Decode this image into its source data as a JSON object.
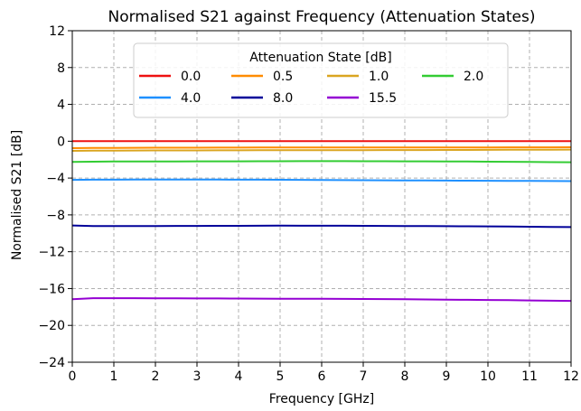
{
  "chart_data": {
    "type": "line",
    "title": "Normalised S21 against Frequency (Attenuation States)",
    "xlabel": "Frequency [GHz]",
    "ylabel": "Normalised S21 [dB]",
    "xlim": [
      0,
      12
    ],
    "ylim": [
      -24,
      12
    ],
    "xticks": [
      0,
      1,
      2,
      3,
      4,
      5,
      6,
      7,
      8,
      9,
      10,
      11,
      12
    ],
    "yticks": [
      12,
      8,
      4,
      0,
      -4,
      -8,
      -12,
      -16,
      -20,
      -24
    ],
    "grid": true,
    "legend": {
      "title": "Attenuation State [dB]",
      "placement": "upper-center",
      "columns": 4
    },
    "x": [
      0,
      0.5,
      1,
      1.5,
      2,
      2.5,
      3,
      3.5,
      4,
      4.5,
      5,
      5.5,
      6,
      6.5,
      7,
      7.5,
      8,
      8.5,
      9,
      9.5,
      10,
      10.5,
      11,
      11.5,
      12
    ],
    "series": [
      {
        "name": "0.0",
        "color": "#ee1111",
        "values": [
          0,
          0,
          0,
          0,
          0,
          0,
          0,
          0,
          0,
          0,
          0,
          0,
          0,
          0,
          0,
          0,
          0,
          0,
          0,
          0,
          0,
          0,
          0,
          0,
          0
        ]
      },
      {
        "name": "0.5",
        "color": "#ff8c00",
        "values": [
          -0.75,
          -0.72,
          -0.72,
          -0.71,
          -0.7,
          -0.7,
          -0.7,
          -0.69,
          -0.69,
          -0.68,
          -0.68,
          -0.68,
          -0.68,
          -0.68,
          -0.68,
          -0.68,
          -0.68,
          -0.68,
          -0.67,
          -0.67,
          -0.67,
          -0.66,
          -0.66,
          -0.66,
          -0.65
        ]
      },
      {
        "name": "1.0",
        "color": "#daa520",
        "values": [
          -1.05,
          -1.03,
          -1.02,
          -1.01,
          -1.0,
          -1.0,
          -1.0,
          -0.99,
          -0.99,
          -0.98,
          -0.98,
          -0.98,
          -0.98,
          -0.97,
          -0.97,
          -0.96,
          -0.96,
          -0.96,
          -0.95,
          -0.95,
          -0.94,
          -0.93,
          -0.92,
          -0.92,
          -0.91
        ]
      },
      {
        "name": "2.0",
        "color": "#33cc33",
        "values": [
          -2.25,
          -2.22,
          -2.2,
          -2.2,
          -2.19,
          -2.19,
          -2.18,
          -2.18,
          -2.18,
          -2.17,
          -2.17,
          -2.16,
          -2.16,
          -2.16,
          -2.17,
          -2.17,
          -2.18,
          -2.18,
          -2.19,
          -2.2,
          -2.22,
          -2.23,
          -2.25,
          -2.27,
          -2.28
        ]
      },
      {
        "name": "4.0",
        "color": "#1e90ff",
        "values": [
          -4.2,
          -4.18,
          -4.18,
          -4.17,
          -4.17,
          -4.17,
          -4.17,
          -4.17,
          -4.18,
          -4.18,
          -4.19,
          -4.2,
          -4.21,
          -4.22,
          -4.23,
          -4.24,
          -4.25,
          -4.26,
          -4.27,
          -4.28,
          -4.29,
          -4.3,
          -4.31,
          -4.32,
          -4.33
        ]
      },
      {
        "name": "8.0",
        "color": "#000099",
        "values": [
          -9.15,
          -9.22,
          -9.22,
          -9.21,
          -9.21,
          -9.2,
          -9.2,
          -9.19,
          -9.19,
          -9.18,
          -9.17,
          -9.18,
          -9.18,
          -9.18,
          -9.19,
          -9.2,
          -9.21,
          -9.22,
          -9.23,
          -9.24,
          -9.25,
          -9.27,
          -9.29,
          -9.31,
          -9.33
        ]
      },
      {
        "name": "15.5",
        "color": "#9400d3",
        "values": [
          -17.15,
          -17.05,
          -17.05,
          -17.05,
          -17.06,
          -17.06,
          -17.07,
          -17.07,
          -17.08,
          -17.09,
          -17.1,
          -17.1,
          -17.11,
          -17.12,
          -17.13,
          -17.14,
          -17.16,
          -17.18,
          -17.2,
          -17.22,
          -17.24,
          -17.26,
          -17.29,
          -17.32,
          -17.34
        ]
      }
    ]
  }
}
